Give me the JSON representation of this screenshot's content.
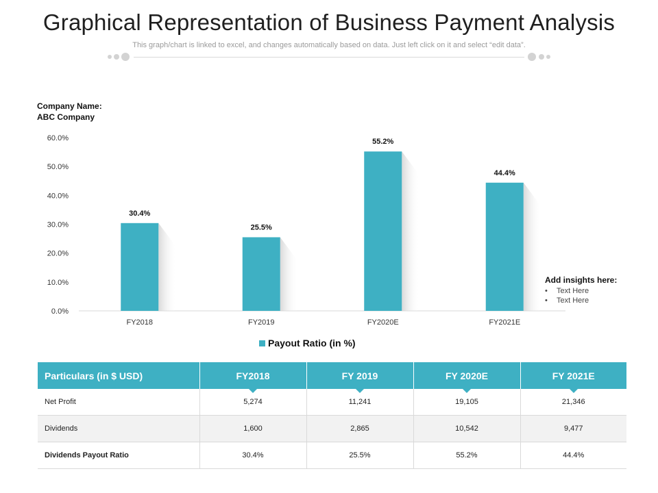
{
  "title": "Graphical Representation of Business Payment Analysis",
  "subtitle": "This graph/chart is linked to excel, and changes automatically based on data. Just left click on it and select “edit data”.",
  "company": {
    "line1": "Company Name:",
    "line2": "ABC Company"
  },
  "colors": {
    "accent": "#3eb0c3",
    "divider": "#d3d3d3"
  },
  "chart_data": {
    "type": "bar",
    "categories": [
      "FY2018",
      "FY2019",
      "FY2020E",
      "FY2021E"
    ],
    "values": [
      30.4,
      25.5,
      55.2,
      44.4
    ],
    "data_labels": [
      "30.4%",
      "25.5%",
      "55.2%",
      "44.4%"
    ],
    "series": [
      {
        "name": "Payout Ratio (in %)",
        "values": [
          30.4,
          25.5,
          55.2,
          44.4
        ]
      }
    ],
    "yticks": [
      "0.0%",
      "10.0%",
      "20.0%",
      "30.0%",
      "40.0%",
      "50.0%",
      "60.0%"
    ],
    "ylim": [
      0,
      60
    ],
    "grid": false,
    "legend": "bottom",
    "color": "#3eb0c3"
  },
  "legend": {
    "label": "Payout Ratio (in %)"
  },
  "insights": {
    "title": "Add insights here:",
    "items": [
      "Text Here",
      "Text Here"
    ]
  },
  "table": {
    "headers": [
      "Particulars (in $ USD)",
      "FY2018",
      "FY 2019",
      "FY 2020E",
      "FY 2021E"
    ],
    "rows": [
      {
        "label": "Net Profit",
        "values": [
          "5,274",
          "11,241",
          "19,105",
          "21,346"
        ]
      },
      {
        "label": "Dividends",
        "values": [
          "1,600",
          "2,865",
          "10,542",
          "9,477"
        ]
      },
      {
        "label": "Dividends Payout Ratio",
        "values": [
          "30.4%",
          "25.5%",
          "55.2%",
          "44.4%"
        ]
      }
    ]
  }
}
